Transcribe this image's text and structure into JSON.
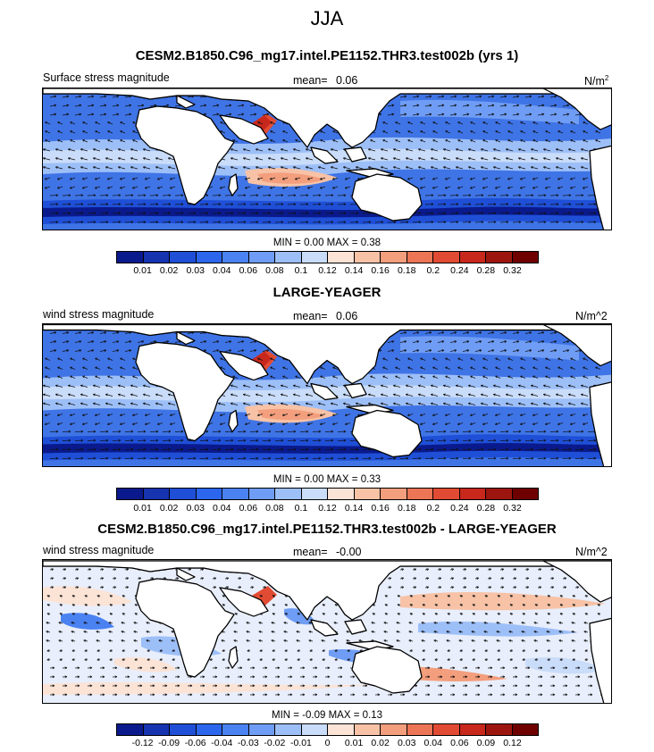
{
  "figure": {
    "title": "JJA"
  },
  "panels": [
    {
      "id": "p1",
      "title": "CESM2.B1850.C96_mg17.intel.PE1152.THR3.test002b (yrs 1)",
      "left_label": "Surface stress magnitude",
      "mean_label": "mean=",
      "mean_value": "0.06",
      "units_label": "N/m",
      "units_sup": "2",
      "minmax_text": "MIN =   0.00 MAX =   0.38",
      "colorbar_ticks": [
        "0.01",
        "0.02",
        "0.03",
        "0.04",
        "0.06",
        "0.08",
        "0.1",
        "0.12",
        "0.14",
        "0.16",
        "0.18",
        "0.2",
        "0.24",
        "0.28",
        "0.32"
      ]
    },
    {
      "id": "p2",
      "title": "LARGE-YEAGER",
      "left_label": "wind stress magnitude",
      "mean_label": "mean=",
      "mean_value": "0.06",
      "units_label": "N/m^2",
      "minmax_text": "MIN =   0.00 MAX =   0.33",
      "colorbar_ticks": [
        "0.01",
        "0.02",
        "0.03",
        "0.04",
        "0.06",
        "0.08",
        "0.1",
        "0.12",
        "0.14",
        "0.16",
        "0.18",
        "0.2",
        "0.24",
        "0.28",
        "0.32"
      ]
    },
    {
      "id": "p3",
      "title": "CESM2.B1850.C96_mg17.intel.PE1152.THR3.test002b - LARGE-YEAGER",
      "left_label": "wind stress magnitude",
      "mean_label": "mean=",
      "mean_value": "-0.00",
      "units_label": "N/m^2",
      "minmax_text": "MIN =  -0.09 MAX =   0.13",
      "colorbar_ticks": [
        "-0.12",
        "-0.09",
        "-0.06",
        "-0.04",
        "-0.03",
        "-0.02",
        "-0.01",
        "0",
        "0.01",
        "0.02",
        "0.03",
        "0.04",
        "0.06",
        "0.09",
        "0.12"
      ]
    }
  ],
  "palette": [
    "#0a1a8c",
    "#1633b0",
    "#1f4fd6",
    "#2c66ec",
    "#4a82f2",
    "#6f9df5",
    "#9dbff8",
    "#c9dcf9",
    "#fbe3d6",
    "#f7c2a6",
    "#f39e7d",
    "#ec7556",
    "#e24b33",
    "#c8281c",
    "#9c160f",
    "#6e0000"
  ]
}
